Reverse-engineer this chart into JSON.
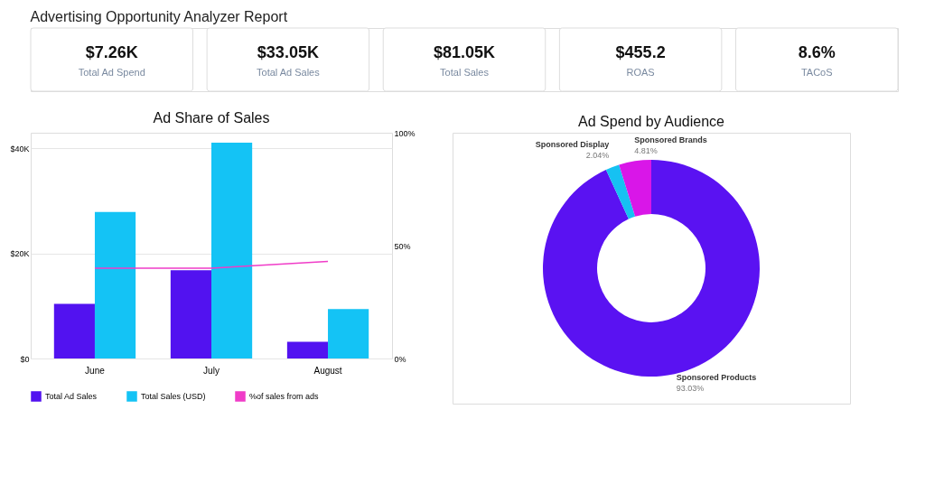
{
  "chart_data": [
    {
      "type": "other",
      "title": "Advertising Opportunity Analyzer Report",
      "annotations": [
        "$7.26K",
        "Total Ad Spend",
        "$33.05K",
        "Total Ad Sales",
        "$81.05K",
        "Total Sales",
        "$455.2",
        "ROAS",
        "8.6%",
        "TACoS"
      ]
    },
    {
      "type": "bar",
      "title": "Ad Share of Sales",
      "categories": [
        "June",
        "July",
        "August"
      ],
      "series": [
        {
          "name": "Total Ad Sales",
          "color": "#5212f0",
          "values": [
            10400,
            16800,
            3200
          ]
        },
        {
          "name": "Total Sales (USD)",
          "color": "#14c3f5",
          "values": [
            27900,
            41100,
            9400
          ]
        },
        {
          "name": "%of sales from ads",
          "color": "#f03cc8",
          "type": "line",
          "axis": "y2",
          "values": [
            40,
            40,
            43
          ]
        }
      ],
      "ylim": [
        0,
        43000
      ],
      "yticks": [
        {
          "value": 0,
          "label": "$0"
        },
        {
          "value": 20000,
          "label": "$20K"
        },
        {
          "value": 40000,
          "label": "$40K"
        }
      ],
      "y2lim": [
        0,
        100
      ],
      "y2ticks": [
        {
          "value": 0,
          "label": "0%"
        },
        {
          "value": 50,
          "label": "50%"
        },
        {
          "value": 100,
          "label": "100%"
        }
      ],
      "grid": "y",
      "legend": "bottom"
    },
    {
      "type": "donut",
      "title": "Ad Spend by Audience",
      "categories": [
        "Sponsored Products",
        "Sponsored Display",
        "Sponsored Brands"
      ],
      "values": [
        93.03,
        2.04,
        4.81
      ],
      "colors": [
        "#5a12f2",
        "#16c1f2",
        "#d916e8"
      ],
      "value_labels": [
        "93.03%",
        "2.04%",
        "4.81%"
      ],
      "legend": false
    }
  ]
}
